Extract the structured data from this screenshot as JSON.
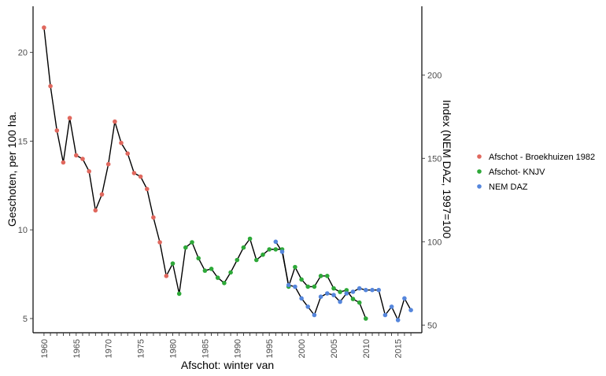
{
  "chart_data": {
    "type": "line",
    "xlabel": "Afschot: winter van",
    "ylabel": "Geschoten, per 100 ha.",
    "y2label": "Index (NEM DAZ, 1997=100",
    "xlim": [
      1958.3,
      2018.7
    ],
    "ylim": [
      4.2,
      22.6
    ],
    "y2lim": [
      45.4,
      241.2
    ],
    "x_ticks": [
      1960,
      1961,
      1962,
      1963,
      1964,
      1965,
      1966,
      1967,
      1968,
      1969,
      1970,
      1971,
      1972,
      1973,
      1974,
      1975,
      1976,
      1977,
      1978,
      1979,
      1980,
      1981,
      1982,
      1983,
      1984,
      1985,
      1986,
      1987,
      1988,
      1989,
      1990,
      1991,
      1992,
      1993,
      1994,
      1995,
      1996,
      1997,
      1998,
      1999,
      2000,
      2001,
      2002,
      2003,
      2004,
      2005,
      2006,
      2007,
      2008,
      2009,
      2010,
      2011,
      2012,
      2013,
      2014,
      2015,
      2016,
      2017
    ],
    "x_tick_labels": [
      {
        "x": 1960,
        "label": "1960"
      },
      {
        "x": 1965,
        "label": "1965"
      },
      {
        "x": 1970,
        "label": "1970"
      },
      {
        "x": 1975,
        "label": "1975"
      },
      {
        "x": 1980,
        "label": "1980"
      },
      {
        "x": 1985,
        "label": "1985"
      },
      {
        "x": 1990,
        "label": "1990"
      },
      {
        "x": 1995,
        "label": "1995"
      },
      {
        "x": 2000,
        "label": "2000"
      },
      {
        "x": 2005,
        "label": "2005"
      },
      {
        "x": 2010,
        "label": "2010"
      },
      {
        "x": 2015,
        "label": "2015"
      }
    ],
    "y_ticks": [
      {
        "value": 5,
        "label": "5"
      },
      {
        "value": 10,
        "label": "10"
      },
      {
        "value": 15,
        "label": "15"
      },
      {
        "value": 20,
        "label": "20"
      }
    ],
    "y2_ticks": [
      {
        "value": 50,
        "label": "50"
      },
      {
        "value": 100,
        "label": "100"
      },
      {
        "value": 150,
        "label": "150"
      },
      {
        "value": 200,
        "label": "200"
      }
    ],
    "grid": false,
    "legend_position": "right",
    "line_color": "#000000",
    "series": [
      {
        "name": "Afschot - Broekhuizen 1982",
        "color": "#E0685E",
        "points": [
          [
            1960,
            21.4
          ],
          [
            1961,
            18.1
          ],
          [
            1962,
            15.6
          ],
          [
            1963,
            13.8
          ],
          [
            1964,
            16.3
          ],
          [
            1965,
            14.2
          ],
          [
            1966,
            14.0
          ],
          [
            1967,
            13.3
          ],
          [
            1968,
            11.1
          ],
          [
            1969,
            12.0
          ],
          [
            1970,
            13.7
          ],
          [
            1971,
            16.1
          ],
          [
            1972,
            14.9
          ],
          [
            1973,
            14.3
          ],
          [
            1974,
            13.2
          ],
          [
            1975,
            13.0
          ],
          [
            1976,
            12.3
          ],
          [
            1977,
            10.7
          ],
          [
            1978,
            9.3
          ],
          [
            1979,
            7.4
          ]
        ]
      },
      {
        "name": "Afschot- KNJV",
        "color": "#2DA838",
        "points": [
          [
            1980,
            8.1
          ],
          [
            1981,
            6.4
          ],
          [
            1982,
            9.0
          ],
          [
            1983,
            9.3
          ],
          [
            1984,
            8.4
          ],
          [
            1985,
            7.7
          ],
          [
            1986,
            7.8
          ],
          [
            1987,
            7.3
          ],
          [
            1988,
            7.0
          ],
          [
            1989,
            7.6
          ],
          [
            1990,
            8.3
          ],
          [
            1991,
            9.0
          ],
          [
            1992,
            9.5
          ],
          [
            1993,
            8.3
          ],
          [
            1994,
            8.6
          ],
          [
            1995,
            8.9
          ],
          [
            1996,
            8.9
          ],
          [
            1997,
            8.9
          ],
          [
            1998,
            6.8
          ],
          [
            1999,
            7.9
          ],
          [
            2000,
            7.2
          ],
          [
            2001,
            6.8
          ],
          [
            2002,
            6.8
          ],
          [
            2003,
            7.4
          ],
          [
            2004,
            7.4
          ],
          [
            2005,
            6.7
          ],
          [
            2006,
            6.5
          ],
          [
            2007,
            6.6
          ],
          [
            2008,
            6.1
          ],
          [
            2009,
            5.9
          ],
          [
            2010,
            5.0
          ]
        ]
      },
      {
        "name": "NEM DAZ",
        "color": "#5586DC",
        "points": [
          [
            1996,
            100
          ],
          [
            1997,
            94
          ],
          [
            1998,
            74
          ],
          [
            1999,
            73
          ],
          [
            2000,
            66
          ],
          [
            2001,
            61
          ],
          [
            2002,
            56
          ],
          [
            2003,
            67
          ],
          [
            2004,
            69
          ],
          [
            2005,
            68
          ],
          [
            2006,
            64
          ],
          [
            2007,
            69
          ],
          [
            2008,
            70
          ],
          [
            2009,
            72
          ],
          [
            2010,
            71
          ],
          [
            2011,
            71
          ],
          [
            2012,
            71
          ],
          [
            2013,
            56
          ],
          [
            2014,
            61
          ],
          [
            2015,
            53
          ],
          [
            2016,
            66
          ],
          [
            2017,
            59
          ]
        ]
      }
    ]
  }
}
